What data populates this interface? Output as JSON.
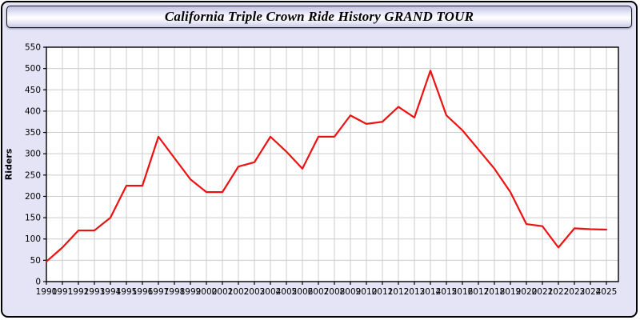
{
  "window": {
    "title": "California Triple Crown Ride History GRAND TOUR"
  },
  "colors": {
    "window_background": "#e4e4f6",
    "plot_background": "#ffffff",
    "grid_color": "#cccccc",
    "axis_color": "#000000",
    "line_color": "#ee1111"
  },
  "chart_data": {
    "type": "line",
    "title": "California Triple Crown Ride History GRAND TOUR",
    "xlabel": "",
    "ylabel": "Riders",
    "ylim": [
      0,
      550
    ],
    "ytick_step": 50,
    "grid": true,
    "legend_position": "none",
    "line_color": "#ee1111",
    "grid_color": "#cccccc",
    "x": [
      1990,
      1991,
      1992,
      1993,
      1994,
      1995,
      1996,
      1997,
      1998,
      1999,
      2000,
      2001,
      2002,
      2003,
      2004,
      2005,
      2006,
      2007,
      2008,
      2009,
      2010,
      2011,
      2012,
      2013,
      2014,
      2015,
      2016,
      2017,
      2018,
      2019,
      2020,
      2021,
      2022,
      2023,
      2024,
      2025
    ],
    "series": [
      {
        "name": "Riders",
        "values": [
          47,
          80,
          120,
          120,
          150,
          225,
          225,
          340,
          290,
          240,
          210,
          210,
          270,
          280,
          340,
          305,
          265,
          340,
          340,
          390,
          370,
          375,
          410,
          385,
          495,
          390,
          355,
          310,
          265,
          210,
          135,
          130,
          80,
          125,
          123,
          122
        ]
      }
    ]
  }
}
